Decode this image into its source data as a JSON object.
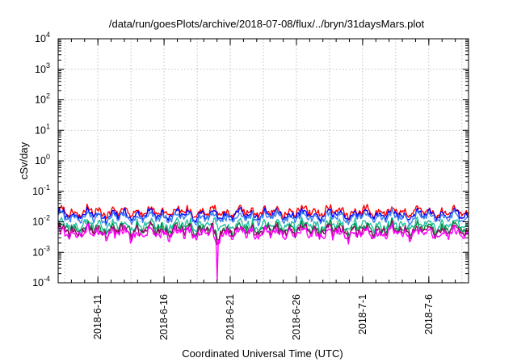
{
  "chart_data": {
    "type": "line",
    "title": "/data/run/goesPlots/archive/2018-07-08/flux/../bryn/31daysMars.plot",
    "xlabel": "Coordinated Universal Time (UTC)",
    "ylabel": "cSv/day",
    "yscale": "log",
    "ylim": [
      0.0001,
      10000
    ],
    "y_tick_base": "10",
    "y_tick_exponents": [
      "-4",
      "-3",
      "-2",
      "-1",
      "0",
      "1",
      "2",
      "3",
      "4"
    ],
    "x_start": "2018-06-08",
    "x_end": "2018-07-09",
    "x_ticks": [
      "2018-6-11",
      "2018-6-16",
      "2018-6-21",
      "2018-6-26",
      "2018-7-1",
      "2018-7-6"
    ],
    "grid": true,
    "series": [
      {
        "color": "#ff0000",
        "level": 0.021,
        "minor_ticks": true
      },
      {
        "color": "#0000ff",
        "level": 0.017
      },
      {
        "color": "#3a7ff0",
        "level": 0.014
      },
      {
        "color": "#20c0a0",
        "level": 0.0085
      },
      {
        "color": "#008c40",
        "level": 0.0065
      },
      {
        "color": "#a0006e",
        "level": 0.0055
      },
      {
        "color": "#ff00ff",
        "level": 0.0045,
        "note": "dip to ~1.2e-4 near 2018-6-20"
      }
    ]
  }
}
